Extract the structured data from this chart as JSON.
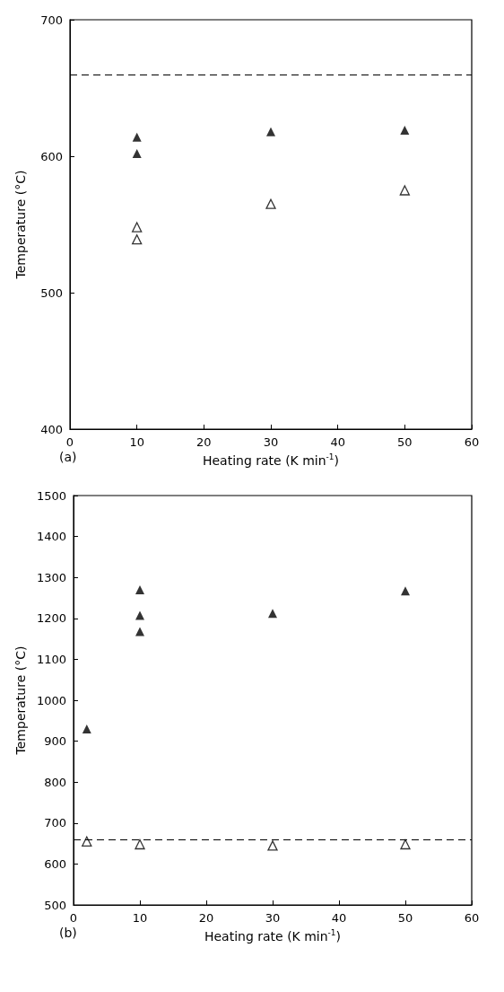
{
  "chart_data": [
    {
      "type": "scatter",
      "xlabel": "Heating rate (K min$^{-1}$)",
      "ylabel": "Temperature (°C)",
      "xlim": [
        0,
        60
      ],
      "xticks": [
        0,
        10,
        20,
        30,
        40,
        50,
        60
      ],
      "ylim": [
        400,
        700
      ],
      "yticks": [
        400,
        500,
        600,
        700
      ],
      "grid": false,
      "marker": "triangle",
      "annotations": [
        "(a)"
      ],
      "ref_lines": [
        {
          "axis": "y",
          "value": 660,
          "color": "#000000",
          "line_style": "dashed"
        }
      ],
      "series": [
        {
          "color": "#000000",
          "x": [
            10,
            10,
            30,
            50
          ],
          "values": [
            614,
            602,
            618,
            619
          ]
        },
        {
          "color": "#000000",
          "x": [
            10,
            10,
            30,
            50
          ],
          "values": [
            548,
            539,
            565,
            575
          ]
        }
      ]
    },
    {
      "type": "scatter",
      "xlabel": "Heating rate (K min$^{-1}$)",
      "ylabel": "Temperature (°C)",
      "xlim": [
        0,
        60
      ],
      "xticks": [
        0,
        10,
        20,
        30,
        40,
        50,
        60
      ],
      "ylim": [
        500,
        1500
      ],
      "yticks": [
        500,
        600,
        700,
        800,
        900,
        1000,
        1100,
        1200,
        1300,
        1400,
        1500
      ],
      "grid": false,
      "marker": "triangle",
      "annotations": [
        "(b)"
      ],
      "ref_lines": [
        {
          "axis": "y",
          "value": 660,
          "color": "#000000",
          "line_style": "dashed"
        }
      ],
      "series": [
        {
          "color": "#000000",
          "x": [
            2,
            10,
            10,
            10,
            30,
            50
          ],
          "values": [
            930,
            1270,
            1207,
            1168,
            1212,
            1267
          ]
        },
        {
          "color": "#000000",
          "x": [
            2,
            10,
            30,
            50
          ],
          "values": [
            655,
            648,
            645,
            648
          ]
        }
      ]
    }
  ]
}
